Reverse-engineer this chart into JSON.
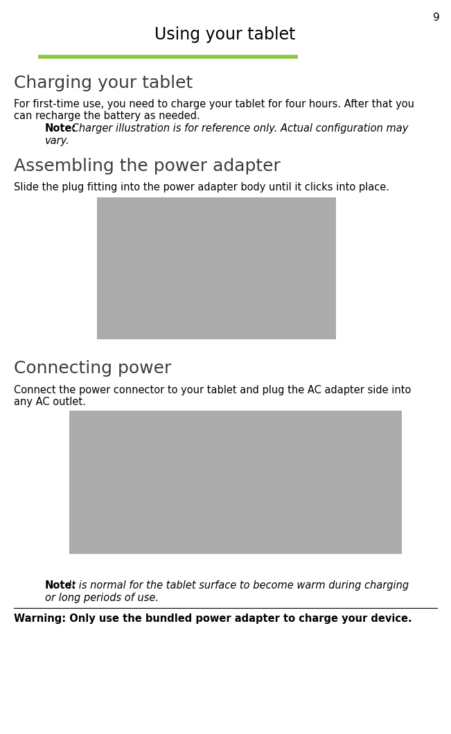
{
  "page_number": "9",
  "title": "Using your tablet",
  "title_underline_color": "#8DC63F",
  "background_color": "#ffffff",
  "section1_heading": "Charging your tablet",
  "section1_body_line1": "For first-time use, you need to charge your tablet for four hours. After that you",
  "section1_body_line2": "can recharge the battery as needed.",
  "section1_note_bold": "Note:",
  "section1_note_line1": " Charger illustration is for reference only. Actual configuration may",
  "section1_note_line2": "vary.",
  "section2_heading": "Assembling the power adapter",
  "section2_body": "Slide the plug fitting into the power adapter body until it clicks into place.",
  "section3_heading": "Connecting power",
  "section3_body_line1": "Connect the power connector to your tablet and plug the AC adapter side into",
  "section3_body_line2": "any AC outlet.",
  "note2_bold": "Note:",
  "note2_line1": "It is normal for the tablet surface to become warm during charging",
  "note2_line2": "or long periods of use.",
  "warning_text": "Warning: Only use the bundled power adapter to charge your device.",
  "image_bg": "#ABABAB",
  "text_color": "#000000",
  "heading_color": "#3C3C3C",
  "body_fontsize": 10.5,
  "heading_fontsize": 18,
  "title_fontsize": 17
}
